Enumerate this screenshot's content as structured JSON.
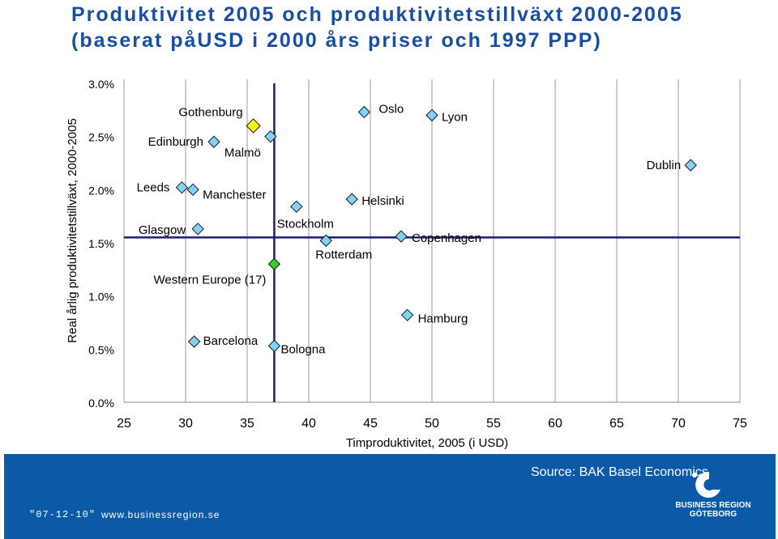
{
  "slide": {
    "title_line1": "Produktivitet 2005 och produktivitetstillväxt 2000-2005",
    "title_line2": "(baserat påUSD i 2000 års priser och 1997 PPP)"
  },
  "footer": {
    "source": "Source: BAK Basel Economics",
    "date": "\"07-12-10\"",
    "url": "www.businessregion.se",
    "logo_line1": "BUSINESS REGION",
    "logo_line2": "GÖTEBORG"
  },
  "colors": {
    "title": "#1a4ea0",
    "marker": "#7fd3f7",
    "highlight_marker": "#ffff00",
    "reference_marker": "#33cc33",
    "reference_line": "#1f1f6e",
    "footer_bg": "#0b5aa8"
  },
  "chart_data": {
    "type": "scatter",
    "xlabel": "Timproduktivitet, 2005 (i USD)",
    "ylabel": "Real årlig produktivitetstillväxt, 2000-2005",
    "xlim": [
      25,
      75
    ],
    "ylim": [
      0.0,
      3.0
    ],
    "xticks": [
      "25",
      "30",
      "35",
      "40",
      "45",
      "50",
      "55",
      "60",
      "65",
      "70",
      "75"
    ],
    "yticks": [
      "0.0%",
      "0.5%",
      "1.0%",
      "1.5%",
      "2.0%",
      "2.5%",
      "3.0%"
    ],
    "grid": "vertical",
    "reference_lines": {
      "x": 37.2,
      "y": 1.55
    },
    "points": [
      {
        "name": "Gothenburg",
        "x": 35.5,
        "y": 2.6,
        "marker": "highlight"
      },
      {
        "name": "Edinburgh",
        "x": 32.3,
        "y": 2.45
      },
      {
        "name": "Malmö",
        "x": 36.9,
        "y": 2.5
      },
      {
        "name": "Leeds",
        "x": 29.7,
        "y": 2.02
      },
      {
        "name": "Manchester",
        "x": 30.6,
        "y": 2.0
      },
      {
        "name": "Glasgow",
        "x": 31.0,
        "y": 1.63
      },
      {
        "name": "Western Europe (17)",
        "x": 37.2,
        "y": 1.3,
        "marker": "reference"
      },
      {
        "name": "Barcelona",
        "x": 30.7,
        "y": 0.57
      },
      {
        "name": "Bologna",
        "x": 37.2,
        "y": 0.53
      },
      {
        "name": "Stockholm",
        "x": 39.0,
        "y": 1.84
      },
      {
        "name": "Rotterdam",
        "x": 41.4,
        "y": 1.52
      },
      {
        "name": "Helsinki",
        "x": 43.5,
        "y": 1.91
      },
      {
        "name": "Oslo",
        "x": 44.5,
        "y": 2.73
      },
      {
        "name": "Lyon",
        "x": 50.0,
        "y": 2.7
      },
      {
        "name": "Copenhagen",
        "x": 47.5,
        "y": 1.56
      },
      {
        "name": "Hamburg",
        "x": 48.0,
        "y": 0.82
      },
      {
        "name": "Dublin",
        "x": 71.0,
        "y": 2.23
      }
    ]
  }
}
